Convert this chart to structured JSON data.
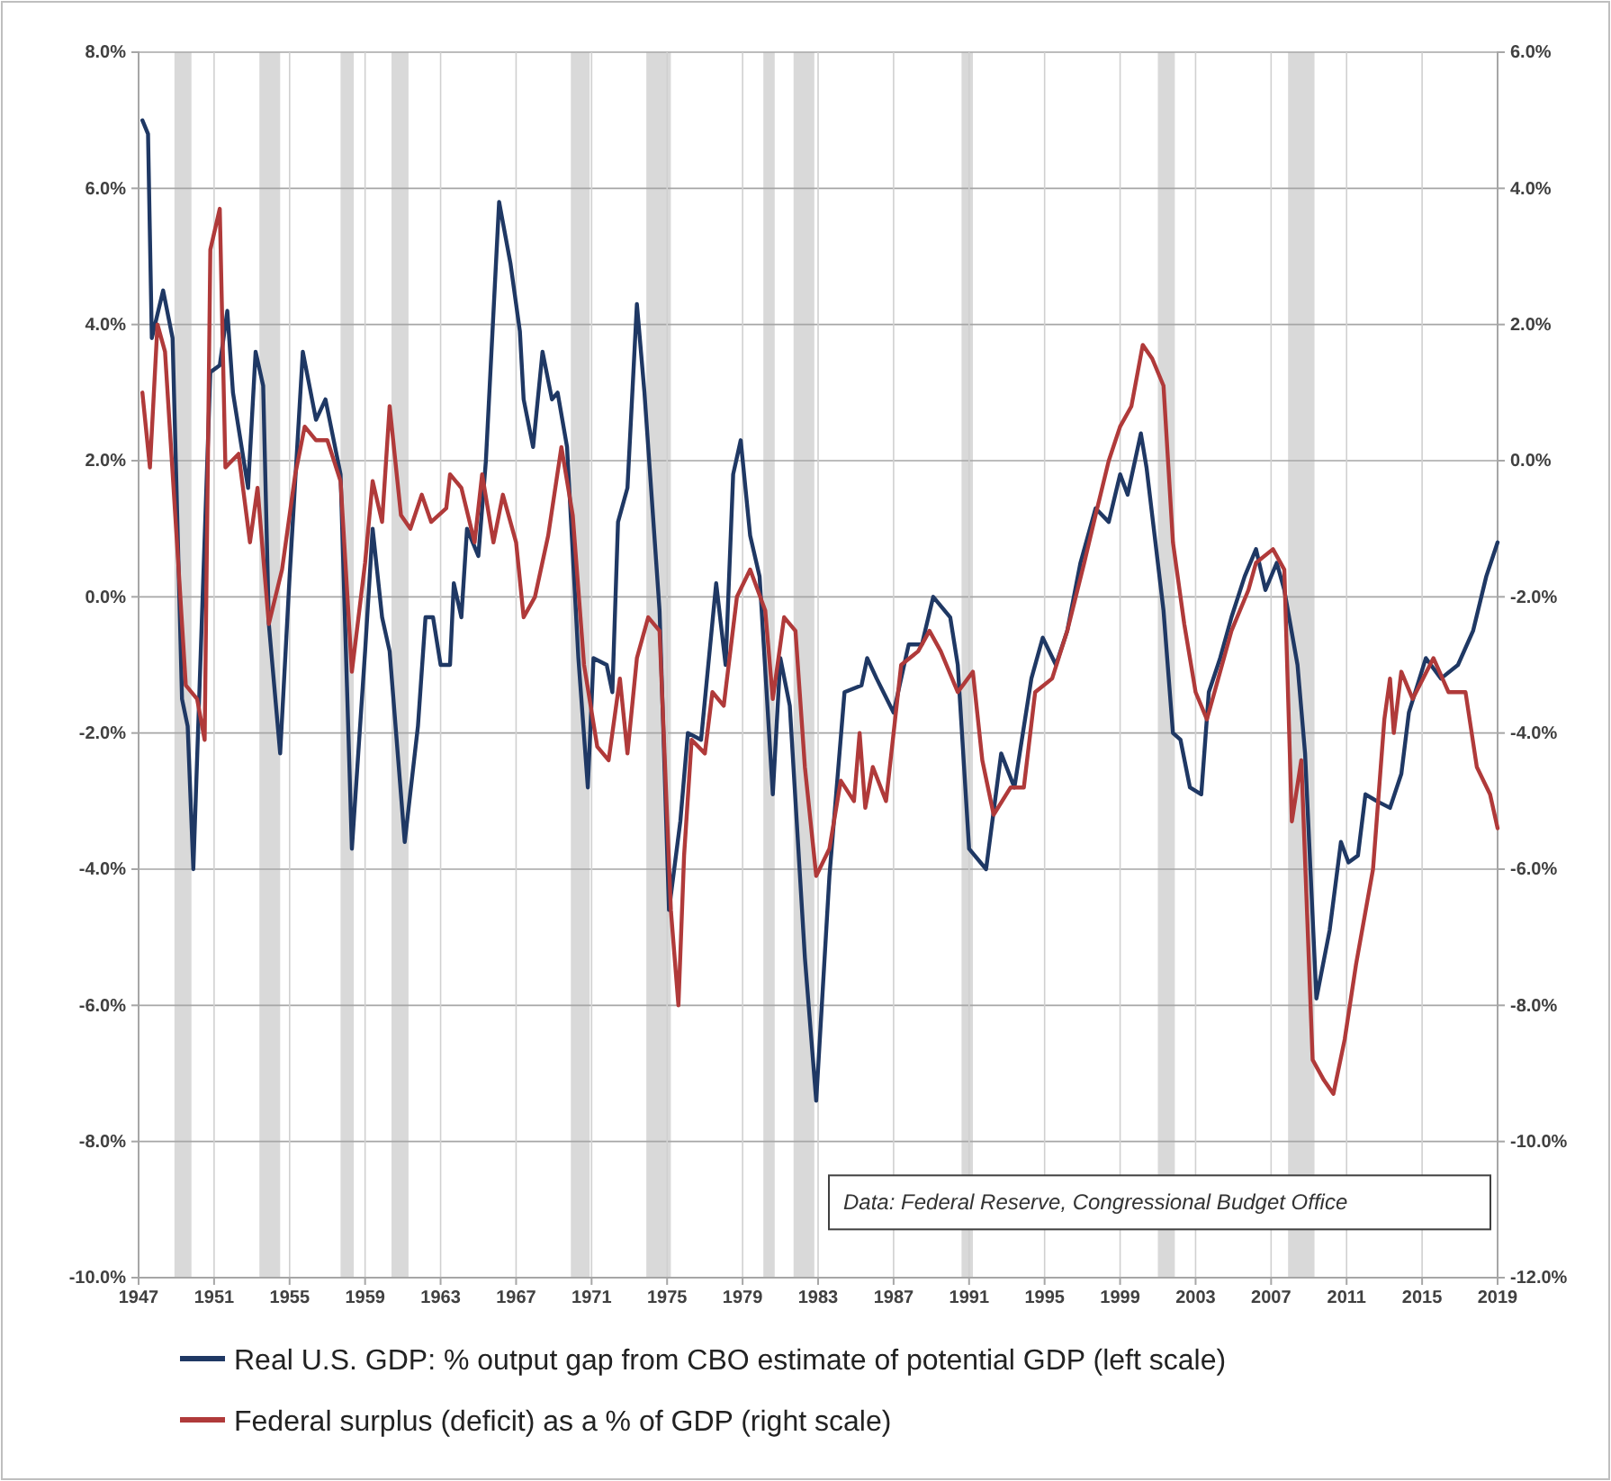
{
  "chart_data": {
    "type": "line",
    "xlim": [
      1947,
      2019
    ],
    "xticks": [
      1947,
      1951,
      1955,
      1959,
      1963,
      1967,
      1971,
      1975,
      1979,
      1983,
      1987,
      1991,
      1995,
      1999,
      2003,
      2007,
      2011,
      2015,
      2019
    ],
    "ylim": [
      -10,
      8
    ],
    "yticks": [
      {
        "value": -10,
        "label": "-10.0%"
      },
      {
        "value": -8,
        "label": "-8.0%"
      },
      {
        "value": -6,
        "label": "-6.0%"
      },
      {
        "value": -4,
        "label": "-4.0%"
      },
      {
        "value": -2,
        "label": "-2.0%"
      },
      {
        "value": 0,
        "label": "0.0%"
      },
      {
        "value": 2,
        "label": "2.0%"
      },
      {
        "value": 4,
        "label": "4.0%"
      },
      {
        "value": 6,
        "label": "6.0%"
      },
      {
        "value": 8,
        "label": "8.0%"
      }
    ],
    "y2lim": [
      -12,
      6
    ],
    "y2ticks": [
      {
        "value": -12,
        "label": "-12.0%"
      },
      {
        "value": -10,
        "label": "-10.0%"
      },
      {
        "value": -8,
        "label": "-8.0%"
      },
      {
        "value": -6,
        "label": "-6.0%"
      },
      {
        "value": -4,
        "label": "-4.0%"
      },
      {
        "value": -2,
        "label": "-2.0%"
      },
      {
        "value": 0,
        "label": "0.0%"
      },
      {
        "value": 2,
        "label": "2.0%"
      },
      {
        "value": 4,
        "label": "4.0%"
      },
      {
        "value": 6,
        "label": "6.0%"
      }
    ],
    "grid": true,
    "legend": "bottom",
    "line_style": "solid",
    "annotations": [
      "Data: Federal Reserve, Congressional Budget Office"
    ],
    "bands": [
      {
        "axis": "x",
        "from": 1948.9,
        "to": 1949.8,
        "color": "#d9d9d9"
      },
      {
        "axis": "x",
        "from": 1953.4,
        "to": 1954.5,
        "color": "#d9d9d9"
      },
      {
        "axis": "x",
        "from": 1957.7,
        "to": 1958.4,
        "color": "#d9d9d9"
      },
      {
        "axis": "x",
        "from": 1960.4,
        "to": 1961.3,
        "color": "#d9d9d9"
      },
      {
        "axis": "x",
        "from": 1969.9,
        "to": 1970.9,
        "color": "#d9d9d9"
      },
      {
        "axis": "x",
        "from": 1973.9,
        "to": 1975.2,
        "color": "#d9d9d9"
      },
      {
        "axis": "x",
        "from": 1980.1,
        "to": 1980.7,
        "color": "#d9d9d9"
      },
      {
        "axis": "x",
        "from": 1981.7,
        "to": 1982.8,
        "color": "#d9d9d9"
      },
      {
        "axis": "x",
        "from": 1990.6,
        "to": 1991.2,
        "color": "#d9d9d9"
      },
      {
        "axis": "x",
        "from": 2001.0,
        "to": 2001.9,
        "color": "#d9d9d9"
      },
      {
        "axis": "x",
        "from": 2007.9,
        "to": 2009.3,
        "color": "#d9d9d9"
      }
    ],
    "series": [
      {
        "name": "Real U.S. GDP: % output gap from CBO estimate of potential GDP (left scale)",
        "color": "#1f3864",
        "axis": "y",
        "x": [
          1947.2,
          1947.5,
          1947.7,
          1948.3,
          1948.8,
          1949.3,
          1949.6,
          1949.9,
          1950.8,
          1951.3,
          1951.7,
          1952.0,
          1952.8,
          1953.2,
          1953.6,
          1953.9,
          1954.5,
          1955.0,
          1955.7,
          1956.4,
          1956.9,
          1957.7,
          1958.3,
          1959.0,
          1959.4,
          1959.9,
          1960.3,
          1961.1,
          1961.8,
          1962.2,
          1962.6,
          1963.0,
          1963.5,
          1963.7,
          1964.1,
          1964.4,
          1965.0,
          1965.4,
          1966.1,
          1966.7,
          1967.2,
          1967.4,
          1967.9,
          1968.4,
          1968.9,
          1969.2,
          1969.7,
          1970.3,
          1970.8,
          1971.1,
          1971.8,
          1972.1,
          1972.4,
          1972.9,
          1973.4,
          1973.8,
          1974.6,
          1975.1,
          1975.7,
          1976.1,
          1976.8,
          1977.6,
          1978.1,
          1978.5,
          1978.9,
          1979.4,
          1979.9,
          1980.6,
          1981.0,
          1981.5,
          1982.3,
          1982.9,
          1983.6,
          1984.4,
          1985.3,
          1985.6,
          1986.1,
          1987.0,
          1987.8,
          1988.5,
          1989.1,
          1990.0,
          1990.4,
          1991.0,
          1991.9,
          1992.7,
          1993.4,
          1994.3,
          1994.9,
          1995.6,
          1996.2,
          1996.9,
          1997.7,
          1998.4,
          1999.0,
          1999.4,
          2000.1,
          2000.4,
          2000.7,
          2001.3,
          2001.8,
          2002.2,
          2002.7,
          2003.3,
          2003.7,
          2004.3,
          2004.9,
          2005.6,
          2006.2,
          2006.7,
          2007.3,
          2007.7,
          2008.4,
          2008.8,
          2009.4,
          2010.1,
          2010.7,
          2011.1,
          2011.6,
          2012.0,
          2012.6,
          2013.3,
          2013.9,
          2014.3,
          2015.2,
          2016.0,
          2016.9,
          2017.7,
          2018.4,
          2019.0
        ],
        "values": [
          7.0,
          6.8,
          3.8,
          4.5,
          3.8,
          -1.5,
          -1.9,
          -4.0,
          3.3,
          3.4,
          4.2,
          3.0,
          1.6,
          3.6,
          3.1,
          -0.4,
          -2.3,
          0.3,
          3.6,
          2.6,
          2.9,
          1.8,
          -3.7,
          -0.8,
          1.0,
          -0.3,
          -0.8,
          -3.6,
          -1.9,
          -0.3,
          -0.3,
          -1.0,
          -1.0,
          0.2,
          -0.3,
          1.0,
          0.6,
          2.0,
          5.8,
          4.9,
          3.9,
          2.9,
          2.2,
          3.6,
          2.9,
          3.0,
          2.2,
          -0.9,
          -2.8,
          -0.9,
          -1.0,
          -1.4,
          1.1,
          1.6,
          4.3,
          3.0,
          -0.2,
          -4.6,
          -3.3,
          -2.0,
          -2.1,
          0.2,
          -1.0,
          1.8,
          2.3,
          0.9,
          0.3,
          -2.9,
          -0.9,
          -1.6,
          -5.3,
          -7.4,
          -4.1,
          -1.4,
          -1.3,
          -0.9,
          -1.2,
          -1.7,
          -0.7,
          -0.7,
          0.0,
          -0.3,
          -1.0,
          -3.7,
          -4.0,
          -2.3,
          -2.8,
          -1.2,
          -0.6,
          -1.0,
          -0.5,
          0.5,
          1.3,
          1.1,
          1.8,
          1.5,
          2.4,
          1.9,
          1.2,
          -0.2,
          -2.0,
          -2.1,
          -2.8,
          -2.9,
          -1.4,
          -0.9,
          -0.3,
          0.3,
          0.7,
          0.1,
          0.5,
          0.1,
          -1.0,
          -2.3,
          -5.9,
          -4.9,
          -3.6,
          -3.9,
          -3.8,
          -2.9,
          -3.0,
          -3.1,
          -2.6,
          -1.7,
          -0.9,
          -1.2,
          -1.0,
          -0.5,
          0.3,
          0.8
        ]
      },
      {
        "name": "Federal surplus (deficit) as a % of GDP (right scale)",
        "color": "#b03a3a",
        "axis": "y2",
        "x": [
          1947.2,
          1947.6,
          1948.0,
          1948.4,
          1949.1,
          1949.5,
          1950.1,
          1950.5,
          1950.8,
          1951.3,
          1951.6,
          1952.3,
          1952.9,
          1953.3,
          1953.9,
          1954.6,
          1955.3,
          1955.8,
          1956.4,
          1957.0,
          1957.7,
          1958.3,
          1959.0,
          1959.4,
          1959.9,
          1960.3,
          1960.9,
          1961.4,
          1962.0,
          1962.5,
          1963.3,
          1963.5,
          1964.1,
          1964.8,
          1965.2,
          1965.8,
          1966.3,
          1967.0,
          1967.4,
          1968.0,
          1968.7,
          1969.4,
          1970.0,
          1970.6,
          1971.3,
          1971.9,
          1972.5,
          1972.9,
          1973.4,
          1974.0,
          1974.6,
          1975.2,
          1975.6,
          1975.9,
          1976.3,
          1977.0,
          1977.4,
          1978.0,
          1978.7,
          1979.4,
          1980.2,
          1980.6,
          1981.2,
          1981.8,
          1982.3,
          1982.9,
          1983.6,
          1984.2,
          1984.9,
          1985.2,
          1985.5,
          1985.9,
          1986.6,
          1987.4,
          1988.3,
          1988.9,
          1989.5,
          1990.4,
          1991.2,
          1991.7,
          1992.3,
          1993.2,
          1993.9,
          1994.5,
          1995.4,
          1996.2,
          1997.1,
          1997.7,
          1998.4,
          1999.0,
          1999.6,
          2000.2,
          2000.7,
          2001.3,
          2001.8,
          2002.4,
          2003.0,
          2003.6,
          2004.2,
          2004.9,
          2005.8,
          2006.2,
          2007.1,
          2007.7,
          2008.1,
          2008.6,
          2009.2,
          2009.8,
          2010.3,
          2010.9,
          2011.5,
          2012.4,
          2013.0,
          2013.3,
          2013.5,
          2013.9,
          2014.5,
          2015.6,
          2016.4,
          2017.3,
          2017.9,
          2018.6,
          2019.0
        ],
        "values": [
          1.0,
          -0.1,
          2.0,
          1.6,
          -1.5,
          -3.3,
          -3.5,
          -4.1,
          3.1,
          3.7,
          -0.1,
          0.1,
          -1.2,
          -0.4,
          -2.4,
          -1.6,
          -0.2,
          0.5,
          0.3,
          0.3,
          -0.3,
          -3.1,
          -1.5,
          -0.3,
          -0.9,
          0.8,
          -0.8,
          -1.0,
          -0.5,
          -0.9,
          -0.7,
          -0.2,
          -0.4,
          -1.2,
          -0.2,
          -1.2,
          -0.5,
          -1.2,
          -2.3,
          -2.0,
          -1.1,
          0.2,
          -0.8,
          -3.0,
          -4.2,
          -4.4,
          -3.2,
          -4.3,
          -2.9,
          -2.3,
          -2.5,
          -6.6,
          -8.0,
          -5.8,
          -4.1,
          -4.3,
          -3.4,
          -3.6,
          -2.0,
          -1.6,
          -2.2,
          -3.5,
          -2.3,
          -2.5,
          -4.5,
          -6.1,
          -5.7,
          -4.7,
          -5.0,
          -4.0,
          -5.1,
          -4.5,
          -5.0,
          -3.0,
          -2.8,
          -2.5,
          -2.8,
          -3.4,
          -3.1,
          -4.4,
          -5.2,
          -4.8,
          -4.8,
          -3.4,
          -3.2,
          -2.5,
          -1.5,
          -0.8,
          0.0,
          0.5,
          0.8,
          1.7,
          1.5,
          1.1,
          -1.2,
          -2.4,
          -3.4,
          -3.8,
          -3.2,
          -2.5,
          -1.9,
          -1.5,
          -1.3,
          -1.6,
          -5.3,
          -4.4,
          -8.8,
          -9.1,
          -9.3,
          -8.5,
          -7.4,
          -6.0,
          -3.8,
          -3.2,
          -4.0,
          -3.1,
          -3.5,
          -2.9,
          -3.4,
          -3.4,
          -4.5,
          -4.9,
          -5.4
        ]
      }
    ]
  }
}
